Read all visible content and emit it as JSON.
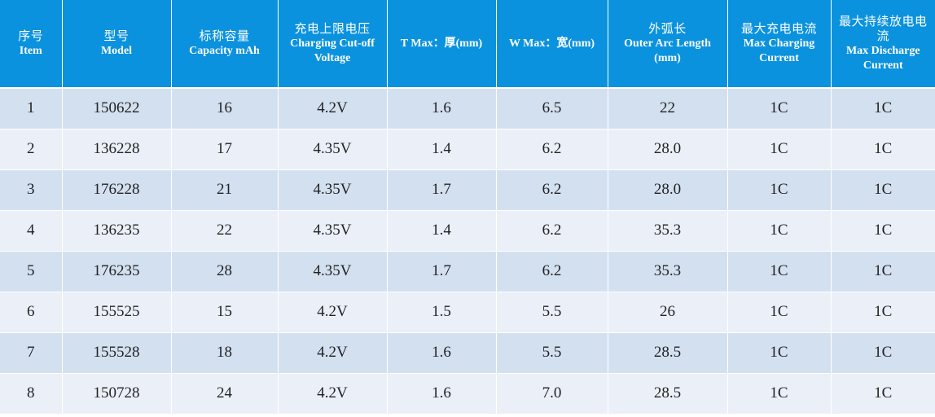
{
  "table": {
    "headers": [
      {
        "zh": "序号",
        "en": "Item"
      },
      {
        "zh": "型号",
        "en": "Model"
      },
      {
        "zh": "标称容量",
        "en": "Capacity mAh"
      },
      {
        "zh": "充电上限电压",
        "en": "Charging  Cut-off Voltage"
      },
      {
        "zh": "",
        "en": "T Max：厚(mm)"
      },
      {
        "zh": "",
        "en": "W Max：宽(mm)"
      },
      {
        "zh": "外弧长",
        "en": "Outer Arc Length (mm)"
      },
      {
        "zh": "最大充电电流",
        "en": "Max Charging Current"
      },
      {
        "zh": "最大持续放电电流",
        "en": "Max  Discharge Current"
      }
    ],
    "rows": [
      [
        "1",
        "150622",
        "16",
        "4.2V",
        "1.6",
        "6.5",
        "22",
        "1C",
        "1C"
      ],
      [
        "2",
        "136228",
        "17",
        "4.35V",
        "1.4",
        "6.2",
        "28.0",
        "1C",
        "1C"
      ],
      [
        "3",
        "176228",
        "21",
        "4.35V",
        "1.7",
        "6.2",
        "28.0",
        "1C",
        "1C"
      ],
      [
        "4",
        "136235",
        "22",
        "4.35V",
        "1.4",
        "6.2",
        "35.3",
        "1C",
        "1C"
      ],
      [
        "5",
        "176235",
        "28",
        "4.35V",
        "1.7",
        "6.2",
        "35.3",
        "1C",
        "1C"
      ],
      [
        "6",
        "155525",
        "15",
        "4.2V",
        "1.5",
        "5.5",
        "26",
        "1C",
        "1C"
      ],
      [
        "7",
        "155528",
        "18",
        "4.2V",
        "1.6",
        "5.5",
        "28.5",
        "1C",
        "1C"
      ],
      [
        "8",
        "150728",
        "24",
        "4.2V",
        "1.6",
        "7.0",
        "28.5",
        "1C",
        "1C"
      ]
    ]
  },
  "colors": {
    "header_bg": "#0a92de",
    "header_text": "#ffffff",
    "row_odd_bg": "#d3e0f0",
    "row_even_bg": "#ebf0f8",
    "cell_text": "#222222"
  }
}
